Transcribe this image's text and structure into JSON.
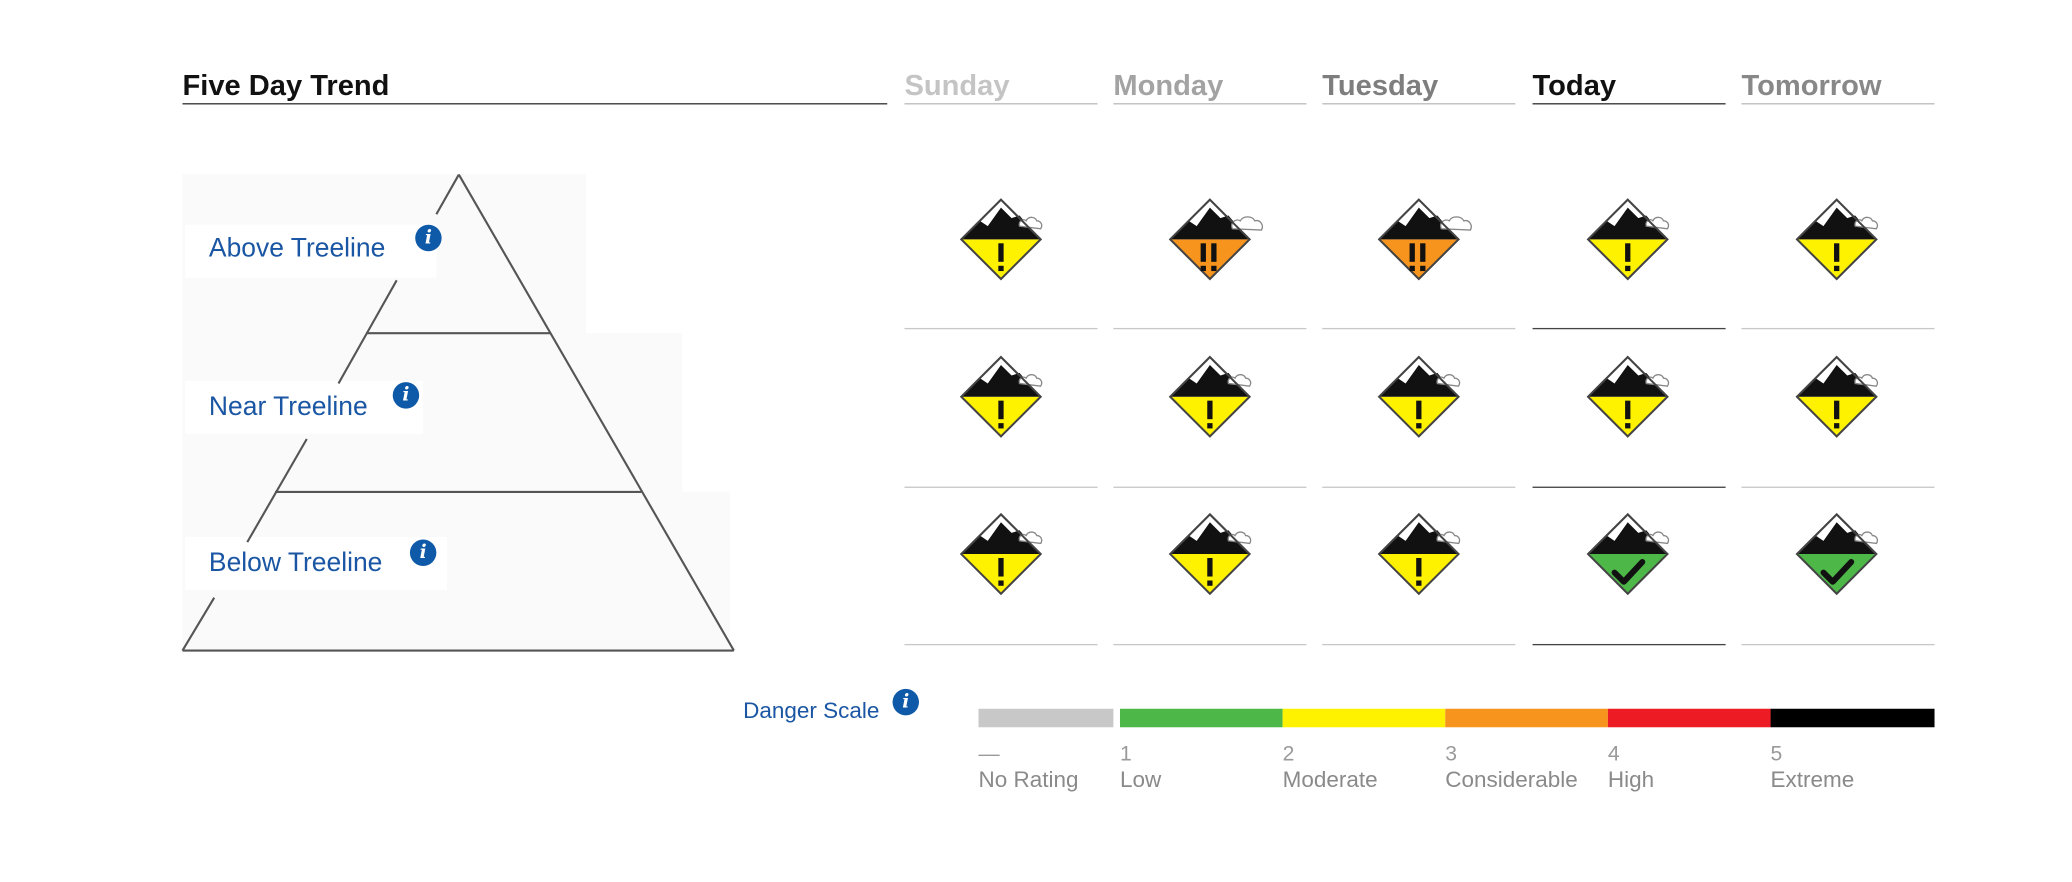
{
  "title": "Five Day Trend",
  "days": [
    "Sunday",
    "Monday",
    "Tuesday",
    "Today",
    "Tomorrow"
  ],
  "elevations": [
    {
      "label": "Above Treeline",
      "info_icon": "info-icon"
    },
    {
      "label": "Near Treeline",
      "info_icon": "info-icon"
    },
    {
      "label": "Below Treeline",
      "info_icon": "info-icon"
    }
  ],
  "danger_matrix": [
    [
      2,
      3,
      3,
      2,
      2
    ],
    [
      2,
      2,
      2,
      2,
      2
    ],
    [
      2,
      2,
      2,
      1,
      1
    ]
  ],
  "danger_scale": {
    "title": "Danger Scale",
    "levels": [
      {
        "number": "—",
        "name": "No Rating",
        "color": "#c8c8c8"
      },
      {
        "number": "1",
        "name": "Low",
        "color": "#4db848"
      },
      {
        "number": "2",
        "name": "Moderate",
        "color": "#fff200"
      },
      {
        "number": "3",
        "name": "Considerable",
        "color": "#f7941d"
      },
      {
        "number": "4",
        "name": "High",
        "color": "#ed1c24"
      },
      {
        "number": "5",
        "name": "Extreme",
        "color": "#000000"
      }
    ]
  }
}
